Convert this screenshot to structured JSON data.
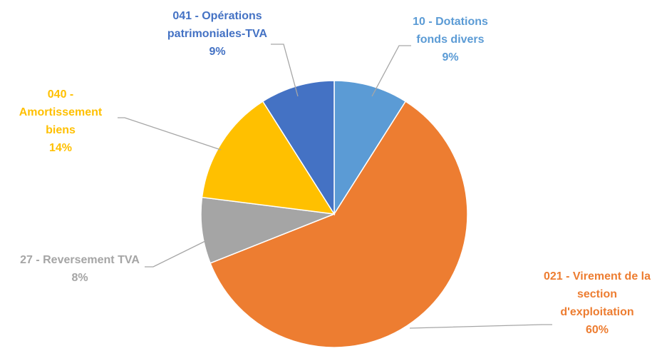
{
  "chart_data": {
    "type": "pie",
    "categories": [
      "10 - Dotations fonds divers",
      "021 - Virement de la section d'exploitation",
      "27 - Reversement TVA",
      "040 - Amortissement biens",
      "041 - Opérations patrimoniales-TVA"
    ],
    "values": [
      9,
      60,
      8,
      14,
      9
    ],
    "value_labels": [
      "9%",
      "60%",
      "8%",
      "14%",
      "9%"
    ],
    "colors": [
      "#5b9bd5",
      "#ed7d31",
      "#a5a5a5",
      "#ffc000",
      "#4472c4"
    ]
  }
}
